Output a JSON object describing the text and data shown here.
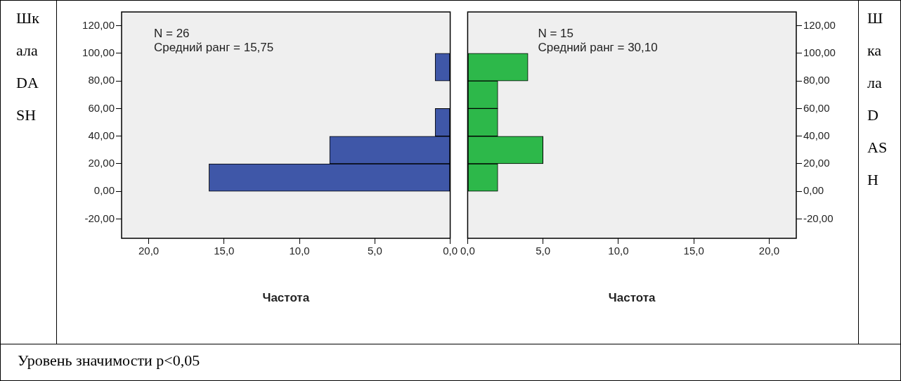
{
  "chart_data": [
    {
      "type": "histogram",
      "orientation": "horizontal",
      "ylabel": "Шкала DASH",
      "xlabel": "Частота",
      "color": "#3f57a8",
      "bins": [
        0,
        20,
        40,
        60,
        80,
        100
      ],
      "values": [
        16,
        8,
        1,
        0,
        1
      ],
      "xlim": [
        21.8,
        0
      ],
      "xticks": [
        {
          "value": 20,
          "label": "20,0"
        },
        {
          "value": 15,
          "label": "15,0"
        },
        {
          "value": 10,
          "label": "10,0"
        },
        {
          "value": 5,
          "label": "5,0"
        },
        {
          "value": 0,
          "label": "0,0"
        }
      ],
      "ylim": [
        -34,
        130
      ],
      "yticks": [
        {
          "value": -20,
          "label": "-20,00"
        },
        {
          "value": 0,
          "label": "0,00"
        },
        {
          "value": 20,
          "label": "20,00"
        },
        {
          "value": 40,
          "label": "40,00"
        },
        {
          "value": 60,
          "label": "60,00"
        },
        {
          "value": 80,
          "label": "80,00"
        },
        {
          "value": 100,
          "label": "100,00"
        },
        {
          "value": 120,
          "label": "120,00"
        }
      ],
      "annotations": [
        "N = 26",
        "Средний ранг = 15,75"
      ],
      "grid": false
    },
    {
      "type": "histogram",
      "orientation": "horizontal",
      "ylabel": "Шкала DASH",
      "xlabel": "Частота",
      "color": "#2db84a",
      "bins": [
        0,
        20,
        40,
        60,
        80,
        100
      ],
      "values": [
        2,
        5,
        2,
        2,
        4
      ],
      "xlim": [
        0,
        21.8
      ],
      "xticks": [
        {
          "value": 0,
          "label": "0,0"
        },
        {
          "value": 5,
          "label": "5,0"
        },
        {
          "value": 10,
          "label": "10,0"
        },
        {
          "value": 15,
          "label": "15,0"
        },
        {
          "value": 20,
          "label": "20,0"
        }
      ],
      "ylim": [
        -34,
        130
      ],
      "yticks": [
        {
          "value": -20,
          "label": "-20,00"
        },
        {
          "value": 0,
          "label": "0,00"
        },
        {
          "value": 20,
          "label": "20,00"
        },
        {
          "value": 40,
          "label": "40,00"
        },
        {
          "value": 60,
          "label": "60,00"
        },
        {
          "value": 80,
          "label": "80,00"
        },
        {
          "value": 100,
          "label": "100,00"
        },
        {
          "value": 120,
          "label": "120,00"
        }
      ],
      "annotations": [
        "N = 15",
        "Средний ранг = 30,10"
      ],
      "grid": false
    },
    {
      "type": "other",
      "annotations": [
        "Уровень значимости p<0,05"
      ]
    }
  ]
}
